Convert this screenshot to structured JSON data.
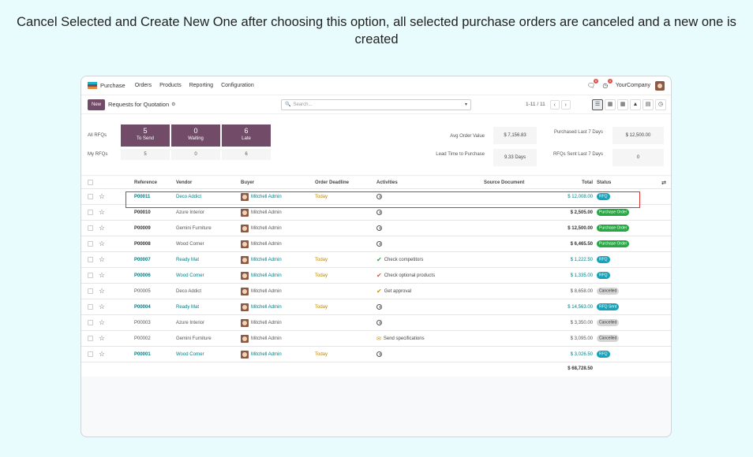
{
  "caption": "Cancel Selected and Create New One after choosing this option, all selected purchase orders are canceled and a new one is created",
  "topbar": {
    "app_name": "Purchase",
    "menu": [
      "Orders",
      "Products",
      "Reporting",
      "Configuration"
    ],
    "chat_badge": "8",
    "activity_badge": "4",
    "company": "YourCompany"
  },
  "control": {
    "new_label": "New",
    "title": "Requests for Quotation",
    "search_placeholder": "Search...",
    "pager": "1-11 / 11"
  },
  "dashboard": {
    "all_rfqs_label": "All RFQs",
    "my_rfqs_label": "My RFQs",
    "tiles": [
      {
        "value": "5",
        "label": "To Send",
        "my": "5"
      },
      {
        "value": "0",
        "label": "Waiting",
        "my": "0"
      },
      {
        "value": "6",
        "label": "Late",
        "my": "6"
      }
    ],
    "metrics": {
      "avg_label": "Avg Order Value",
      "avg_value": "$ 7,156.83",
      "lead_label": "Lead Time to Purchase",
      "lead_value": "9.33 Days",
      "purchased_label": "Purchased Last 7 Days",
      "purchased_value": "$ 12,500.00",
      "sent_label": "RFQs Sent Last 7 Days",
      "sent_value": "0"
    }
  },
  "table": {
    "headers": {
      "reference": "Reference",
      "vendor": "Vendor",
      "buyer": "Buyer",
      "deadline": "Order Deadline",
      "activities": "Activities",
      "source": "Source Document",
      "total": "Total",
      "status": "Status"
    },
    "rows": [
      {
        "ref": "P00011",
        "vendor": "Deco Addict",
        "buyer": "Mitchell Admin",
        "deadline": "Today",
        "activity": "",
        "activity_icon": "clock",
        "total": "$ 12,008.00",
        "status": "RFQ",
        "style": "blue"
      },
      {
        "ref": "P00010",
        "vendor": "Azure Interior",
        "buyer": "Mitchell Admin",
        "deadline": "",
        "activity": "",
        "activity_icon": "clock",
        "total": "$ 2,505.00",
        "status": "Purchase Order",
        "style": "bold"
      },
      {
        "ref": "P00009",
        "vendor": "Gemini Furniture",
        "buyer": "Mitchell Admin",
        "deadline": "",
        "activity": "",
        "activity_icon": "clock",
        "total": "$ 12,500.00",
        "status": "Purchase Order",
        "style": "bold"
      },
      {
        "ref": "P00008",
        "vendor": "Wood Corner",
        "buyer": "Mitchell Admin",
        "deadline": "",
        "activity": "",
        "activity_icon": "clock",
        "total": "$ 6,465.50",
        "status": "Purchase Order",
        "style": "bold"
      },
      {
        "ref": "P00007",
        "vendor": "Ready Mat",
        "buyer": "Mitchell Admin",
        "deadline": "Today",
        "activity": "Check competitors",
        "activity_icon": "check-green",
        "total": "$ 1,222.50",
        "status": "RFQ",
        "style": "blue"
      },
      {
        "ref": "P00006",
        "vendor": "Wood Corner",
        "buyer": "Mitchell Admin",
        "deadline": "Today",
        "activity": "Check optional products",
        "activity_icon": "check-red",
        "total": "$ 1,335.00",
        "status": "RFQ",
        "style": "blue"
      },
      {
        "ref": "P00005",
        "vendor": "Deco Addict",
        "buyer": "Mitchell Admin",
        "deadline": "",
        "activity": "Get approval",
        "activity_icon": "check-yellow",
        "total": "$ 8,658.00",
        "status": "Cancelled",
        "style": "muted"
      },
      {
        "ref": "P00004",
        "vendor": "Ready Mat",
        "buyer": "Mitchell Admin",
        "deadline": "Today",
        "activity": "",
        "activity_icon": "clock",
        "total": "$ 14,563.00",
        "status": "RFQ Sent",
        "style": "blue"
      },
      {
        "ref": "P00003",
        "vendor": "Azure Interior",
        "buyer": "Mitchell Admin",
        "deadline": "",
        "activity": "",
        "activity_icon": "clock",
        "total": "$ 3,350.00",
        "status": "Cancelled",
        "style": "muted"
      },
      {
        "ref": "P00002",
        "vendor": "Gemini Furniture",
        "buyer": "Mitchell Admin",
        "deadline": "",
        "activity": "Send specifications",
        "activity_icon": "envelope",
        "total": "$ 3,095.00",
        "status": "Cancelled",
        "style": "muted"
      },
      {
        "ref": "P00001",
        "vendor": "Wood Corner",
        "buyer": "Mitchell Admin",
        "deadline": "Today",
        "activity": "",
        "activity_icon": "clock",
        "total": "$ 3,026.50",
        "status": "RFQ",
        "style": "blue"
      }
    ],
    "grand_total": "$ 68,728.50"
  },
  "colors": {
    "brand": "#714b67",
    "link": "#017e84",
    "highlight": "#dd3333"
  }
}
